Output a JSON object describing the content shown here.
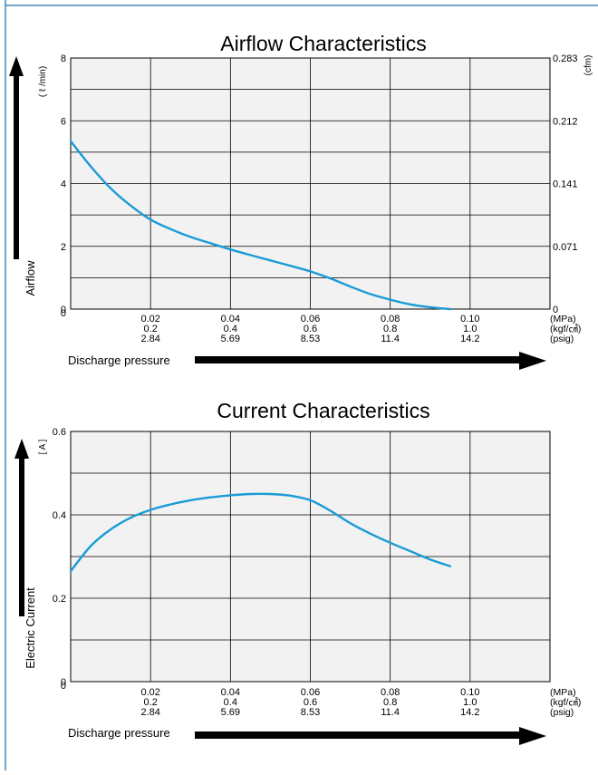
{
  "colors": {
    "curve": "#1a9bd7",
    "plot_bg": "#f2f2f2",
    "grid": "#000000",
    "frame": "#1a6faa"
  },
  "chart_data": [
    {
      "type": "line",
      "title": "Airflow Characteristics",
      "ylabel": "Airflow",
      "ylabel_unit": "( ℓ /min)",
      "ylabel_right_unit": "(cfm)",
      "xlabel": "Discharge pressure",
      "xlim": [
        0,
        0.12
      ],
      "ylim": [
        0,
        8
      ],
      "y_ticks": [
        0,
        2,
        4,
        6,
        8
      ],
      "y_tick_labels": [
        "0",
        "2",
        "4",
        "6",
        "8"
      ],
      "y_right_ticks": [
        0,
        2,
        4,
        6,
        8
      ],
      "y_right_tick_labels": [
        "0",
        "0.071",
        "0.141",
        "0.212",
        "0.283"
      ],
      "x_ticks": [
        0.02,
        0.04,
        0.06,
        0.08,
        0.1
      ],
      "x_tick_rows": [
        [
          "0.02",
          "0.04",
          "0.06",
          "0.08",
          "0.10"
        ],
        [
          "0.2",
          "0.4",
          "0.6",
          "0.8",
          "1.0"
        ],
        [
          "2.84",
          "5.69",
          "8.53",
          "11.4",
          "14.2"
        ]
      ],
      "x_unit_rows": [
        "(MPa)",
        "(kgf/㎠)",
        "(psig)"
      ],
      "grid": true,
      "series": [
        {
          "x": [
            0,
            0.005,
            0.01,
            0.015,
            0.02,
            0.025,
            0.03,
            0.035,
            0.04,
            0.045,
            0.05,
            0.055,
            0.06,
            0.065,
            0.07,
            0.075,
            0.08,
            0.085,
            0.09,
            0.095
          ],
          "y": [
            5.35,
            4.55,
            3.85,
            3.3,
            2.85,
            2.55,
            2.3,
            2.1,
            1.9,
            1.72,
            1.55,
            1.38,
            1.2,
            0.98,
            0.72,
            0.48,
            0.3,
            0.15,
            0.06,
            0.0
          ]
        }
      ]
    },
    {
      "type": "line",
      "title": "Current Characteristics",
      "ylabel": "Electric Current",
      "ylabel_unit": "[ A ]",
      "xlabel": "Discharge pressure",
      "xlim": [
        0,
        0.12
      ],
      "ylim": [
        0,
        0.6
      ],
      "y_ticks": [
        0,
        0.2,
        0.4,
        0.6
      ],
      "y_tick_labels": [
        "0",
        "0.2",
        "0.4",
        "0.6"
      ],
      "x_ticks": [
        0.02,
        0.04,
        0.06,
        0.08,
        0.1
      ],
      "x_tick_rows": [
        [
          "0.02",
          "0.04",
          "0.06",
          "0.08",
          "0.10"
        ],
        [
          "0.2",
          "0.4",
          "0.6",
          "0.8",
          "1.0"
        ],
        [
          "2.84",
          "5.69",
          "8.53",
          "11.4",
          "14.2"
        ]
      ],
      "x_unit_rows": [
        "(MPa)",
        "(kgf/㎠)",
        "(psig)"
      ],
      "grid": true,
      "series": [
        {
          "x": [
            0,
            0.005,
            0.01,
            0.015,
            0.02,
            0.025,
            0.03,
            0.035,
            0.04,
            0.045,
            0.05,
            0.055,
            0.06,
            0.065,
            0.07,
            0.075,
            0.08,
            0.085,
            0.09,
            0.095
          ],
          "y": [
            0.265,
            0.325,
            0.365,
            0.393,
            0.412,
            0.425,
            0.435,
            0.442,
            0.447,
            0.45,
            0.45,
            0.446,
            0.435,
            0.41,
            0.38,
            0.355,
            0.333,
            0.313,
            0.293,
            0.277
          ]
        }
      ]
    }
  ]
}
